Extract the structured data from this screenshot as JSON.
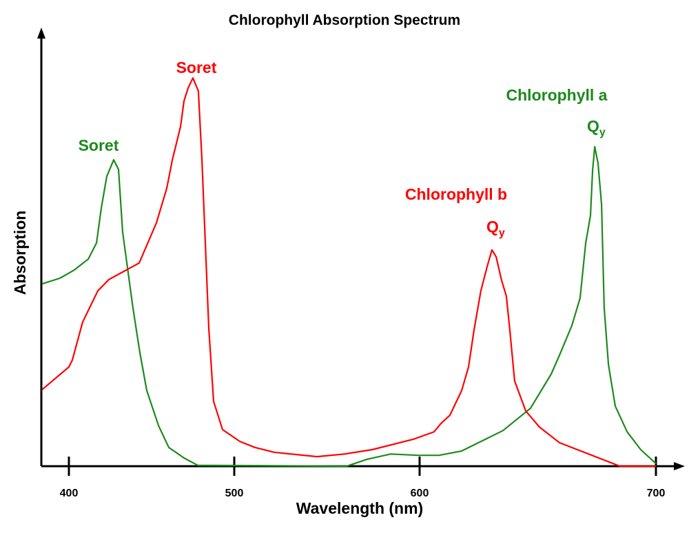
{
  "chart_data": {
    "type": "line",
    "title": "Chlorophyll Absorption Spectrum",
    "xlabel": "Wavelength (nm)",
    "ylabel": "Absorption",
    "xticks": [
      400,
      500,
      600,
      700
    ],
    "xlim": [
      383.5,
      711
    ],
    "ylim": [
      0,
      100
    ],
    "y_units": "arbitrary (no tick labels)",
    "grid": false,
    "colors": {
      "chlorophyll_a": "#1b8a1b",
      "chlorophyll_b": "#ff0000",
      "axis": "#000000"
    },
    "series": [
      {
        "name": "Chlorophyll a",
        "color": "#1b8a1b",
        "points": [
          [
            383.8,
            41.9
          ],
          [
            394.6,
            43.2
          ],
          [
            402.9,
            45.0
          ],
          [
            411.7,
            47.6
          ],
          [
            416.7,
            51.3
          ],
          [
            419.6,
            59.3
          ],
          [
            422.9,
            66.6
          ],
          [
            427.1,
            70.4
          ],
          [
            430.0,
            68.2
          ],
          [
            432.5,
            53.8
          ],
          [
            438.8,
            36.2
          ],
          [
            442.9,
            26.1
          ],
          [
            447.1,
            17.4
          ],
          [
            454.2,
            9.3
          ],
          [
            460.4,
            4.3
          ],
          [
            469.6,
            1.9
          ],
          [
            477.9,
            0.2
          ],
          [
            560.6,
            0
          ],
          [
            571.7,
            1.6
          ],
          [
            584.4,
            2.8
          ],
          [
            599.3,
            2.5
          ],
          [
            608.2,
            2.5
          ],
          [
            617.8,
            3.5
          ],
          [
            635.3,
            8.2
          ],
          [
            646.9,
            13.3
          ],
          [
            655.7,
            21.2
          ],
          [
            659.5,
            25.9
          ],
          [
            664.4,
            32.3
          ],
          [
            667.9,
            38.6
          ],
          [
            670.3,
            51.3
          ],
          [
            672.3,
            57.6
          ],
          [
            673.2,
            68.0
          ],
          [
            674.1,
            73.4
          ],
          [
            675.5,
            69.6
          ],
          [
            677.0,
            60.1
          ],
          [
            678.1,
            36.4
          ],
          [
            679.9,
            23.3
          ],
          [
            682.8,
            13.8
          ],
          [
            687.8,
            7.9
          ],
          [
            693.6,
            3.8
          ],
          [
            700.0,
            0.6
          ]
        ]
      },
      {
        "name": "Chlorophyll b",
        "color": "#ff0000",
        "points": [
          [
            383.8,
            17.6
          ],
          [
            400,
            22.8
          ],
          [
            402.1,
            24.4
          ],
          [
            408.3,
            33.1
          ],
          [
            417.5,
            40.3
          ],
          [
            424.2,
            42.9
          ],
          [
            442.5,
            46.7
          ],
          [
            452.9,
            55.9
          ],
          [
            459.2,
            63.9
          ],
          [
            462.5,
            70.3
          ],
          [
            467.5,
            78.0
          ],
          [
            469.6,
            83.9
          ],
          [
            472.1,
            86.9
          ],
          [
            475.0,
            89.2
          ],
          [
            478.3,
            86.2
          ],
          [
            480.4,
            70.7
          ],
          [
            484.6,
            31.8
          ],
          [
            487.5,
            14.9
          ],
          [
            492.9,
            8.4
          ],
          [
            503.0,
            5.7
          ],
          [
            511.2,
            4.3
          ],
          [
            521.6,
            3.2
          ],
          [
            544.6,
            2.2
          ],
          [
            559.5,
            2.8
          ],
          [
            574.3,
            3.8
          ],
          [
            596.7,
            6.2
          ],
          [
            606.1,
            7.9
          ],
          [
            609.0,
            9.8
          ],
          [
            612.8,
            11.7
          ],
          [
            617.8,
            17.4
          ],
          [
            620.7,
            22.8
          ],
          [
            623.0,
            31.2
          ],
          [
            625.9,
            40.2
          ],
          [
            628.6,
            45.9
          ],
          [
            630.6,
            49.7
          ],
          [
            632.4,
            48.1
          ],
          [
            634.7,
            42.7
          ],
          [
            636.7,
            39.1
          ],
          [
            638.2,
            31.2
          ],
          [
            640.2,
            19.6
          ],
          [
            644.9,
            12.7
          ],
          [
            650.7,
            9.0
          ],
          [
            659.2,
            5.4
          ],
          [
            684.8,
            0
          ],
          [
            700,
            0
          ]
        ]
      }
    ],
    "annotations": {
      "a_soret": "Soret",
      "b_soret": "Soret",
      "a_name": "Chlorophyll a",
      "b_name": "Chlorophyll b",
      "q_main": "Q",
      "q_sub": "y"
    }
  }
}
